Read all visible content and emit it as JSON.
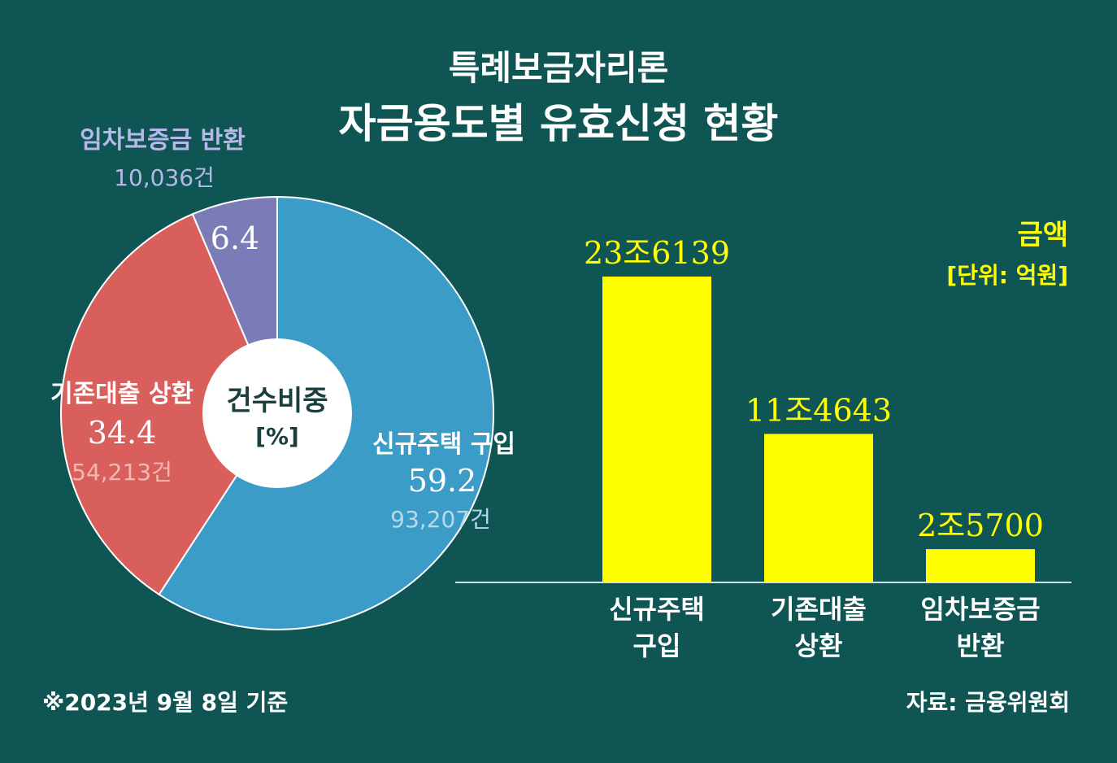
{
  "title": "특례보금자리론",
  "subtitle": "자금용도별 유효신청 현황",
  "chart_data": [
    {
      "type": "pie",
      "center_label": "건수비중",
      "center_unit": "[%]",
      "slices": [
        {
          "label": "신규주택 구입",
          "value": 59.2,
          "value_text": "59.2",
          "count": "93,207건",
          "color": "#3a9cc7",
          "label_color": "#ffffff",
          "count_color": "#b7d9ea"
        },
        {
          "label": "기존대출 상환",
          "value": 34.4,
          "value_text": "34.4",
          "count": "54,213건",
          "color": "#d95f5c",
          "label_color": "#ffffff",
          "count_color": "#f4b7b1"
        },
        {
          "label": "임차보증금 반환",
          "value": 6.4,
          "value_text": "6.4",
          "count": "10,036건",
          "color": "#7b7bb8",
          "label_color": "#b5b8e8",
          "count_color": "#b5b8e8"
        }
      ]
    },
    {
      "type": "bar",
      "legend_title": "금액",
      "unit": "[단위: 억원]",
      "bar_color": "#ffff00",
      "label_color": "#ffff00",
      "ylim": [
        0,
        236139
      ],
      "bars": [
        {
          "category_line1": "신규주택",
          "category_line2": "구입",
          "value": 236139,
          "value_text": "23조6139"
        },
        {
          "category_line1": "기존대출",
          "category_line2": "상환",
          "value": 114643,
          "value_text": "11조4643"
        },
        {
          "category_line1": "임차보증금",
          "category_line2": "반환",
          "value": 25700,
          "value_text": "2조5700"
        }
      ]
    }
  ],
  "footnote": "※2023년 9월 8일 기준",
  "source": "자료: 금융위원회"
}
